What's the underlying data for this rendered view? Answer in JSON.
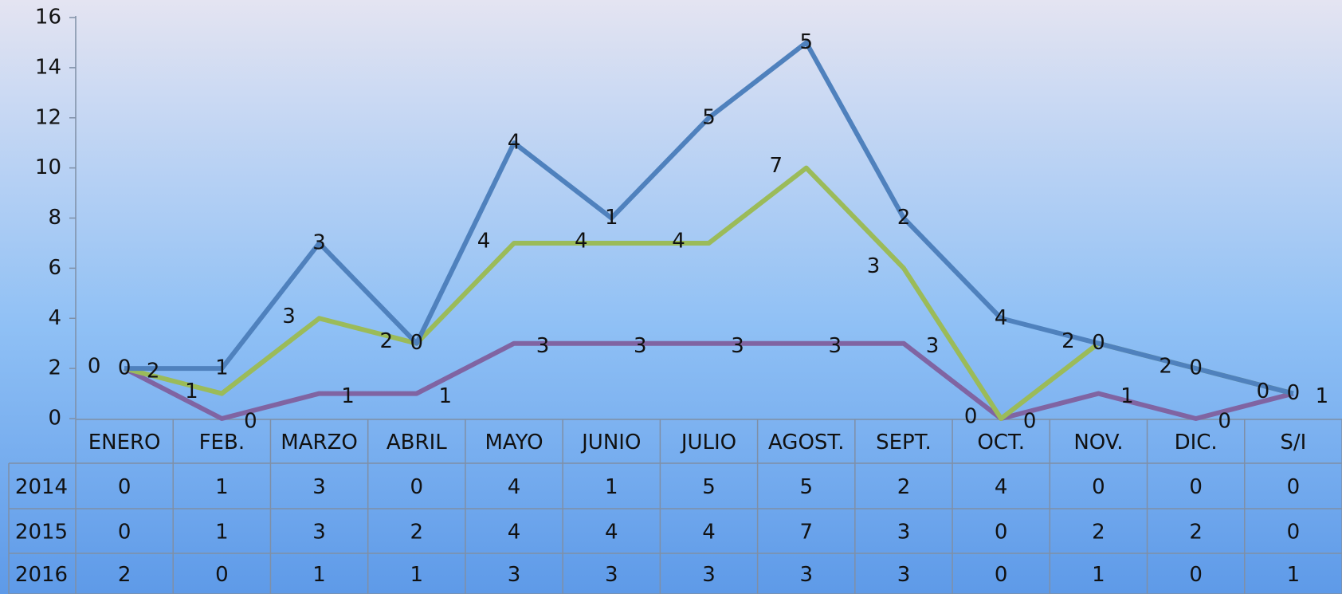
{
  "chart_data": {
    "type": "line",
    "stacked": true,
    "categories": [
      "ENERO",
      "FEB.",
      "MARZO",
      "ABRIL",
      "MAYO",
      "JUNIO",
      "JULIO",
      "AGOST.",
      "SEPT.",
      "OCT.",
      "NOV.",
      "DIC.",
      "S/I"
    ],
    "series": [
      {
        "name": "2014",
        "color": "#4f81bd",
        "values": [
          0,
          1,
          3,
          0,
          4,
          1,
          5,
          5,
          2,
          4,
          0,
          0,
          0
        ]
      },
      {
        "name": "2015",
        "color": "#9bbb59",
        "values": [
          0,
          1,
          3,
          2,
          4,
          4,
          4,
          7,
          3,
          0,
          2,
          2,
          0
        ]
      },
      {
        "name": "2016",
        "color": "#8064a2",
        "values": [
          2,
          0,
          1,
          1,
          3,
          3,
          3,
          3,
          3,
          0,
          1,
          0,
          1
        ]
      }
    ],
    "ylim": [
      0,
      16
    ],
    "yticks": [
      0,
      2,
      4,
      6,
      8,
      10,
      12,
      14,
      16
    ],
    "data_table": true
  }
}
